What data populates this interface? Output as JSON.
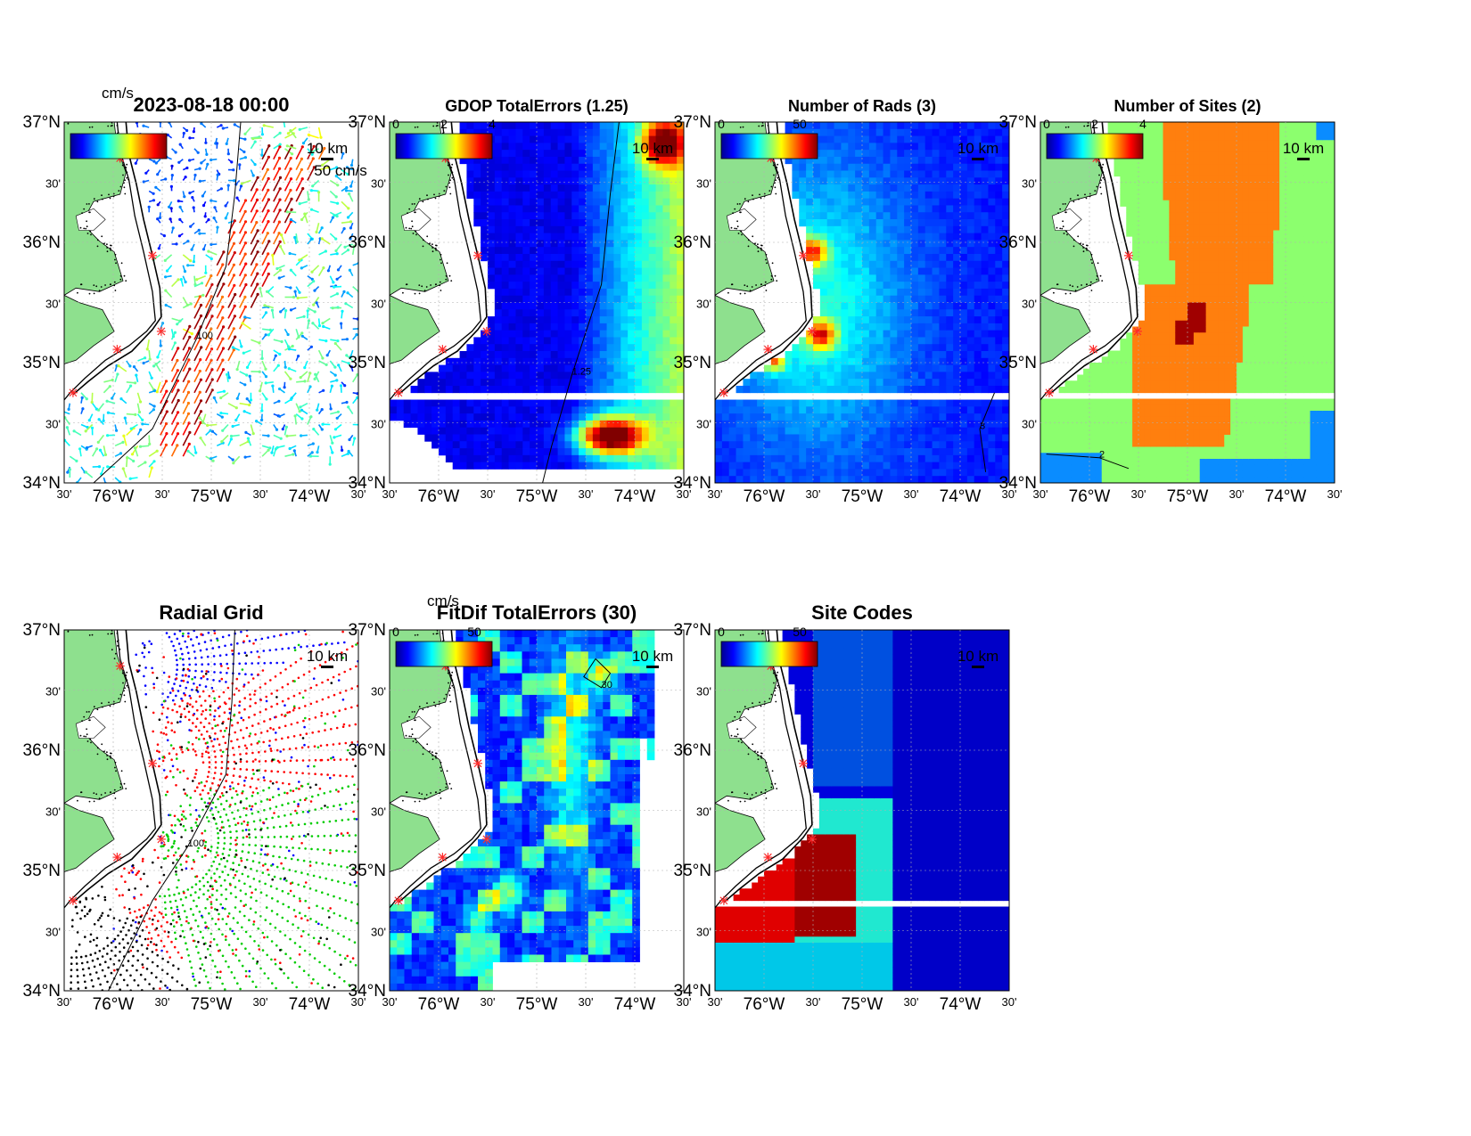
{
  "figure": {
    "lat_labels": [
      "37°N",
      "30'",
      "36°N",
      "30'",
      "35°N",
      "30'",
      "34°N"
    ],
    "lon_labels": [
      "30'",
      "76°W",
      "30'",
      "75°W",
      "30'",
      "74°W",
      "30'"
    ],
    "scale_label": "10 km",
    "colors": {
      "land": "#8ee08e",
      "coast": "#000000",
      "grid": "#b0b0b0",
      "site": "#ff2a2a"
    }
  },
  "panels": [
    {
      "id": "currents",
      "title": "2023-08-18 00:00",
      "colorbar": {
        "unit": "cm/s",
        "ticks": []
      },
      "arrow_label": "50 cm/s",
      "contour_label": "100"
    },
    {
      "id": "gdop",
      "title": "GDOP TotalErrors (1.25)",
      "colorbar": {
        "unit": "",
        "ticks": [
          "0",
          "2",
          "4"
        ]
      },
      "contour_label": "1.25"
    },
    {
      "id": "rads",
      "title": "Number of Rads (3)",
      "colorbar": {
        "unit": "",
        "ticks": [
          "0",
          "50"
        ]
      },
      "contour_label": "3"
    },
    {
      "id": "sites",
      "title": "Number of Sites (2)",
      "colorbar": {
        "unit": "",
        "ticks": [
          "0",
          "2",
          "4"
        ]
      },
      "contour_label": "2"
    },
    {
      "id": "radial",
      "title": "Radial Grid",
      "colorbar": null,
      "contour_label": "100"
    },
    {
      "id": "fitdif",
      "title": "FitDif TotalErrors (30)",
      "colorbar": {
        "unit": "cm/s",
        "ticks": [
          "0",
          "50"
        ]
      },
      "contour_label": "30"
    },
    {
      "id": "codes",
      "title": "Site Codes",
      "colorbar": {
        "unit": "",
        "ticks": [
          "0",
          "50"
        ]
      },
      "contour_label": ""
    }
  ]
}
